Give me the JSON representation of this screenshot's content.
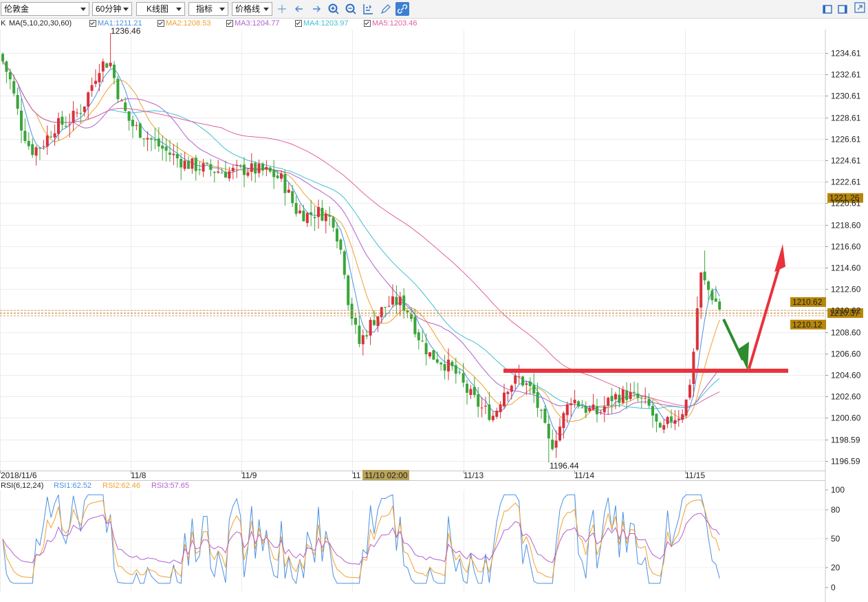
{
  "toolbar": {
    "symbol": "伦敦金",
    "period": "60分钟",
    "chart_kind": "K线图",
    "indicator": "指标",
    "price_line": "价格线",
    "icons": [
      "crosshair-icon",
      "arrow-left-icon",
      "arrow-right-icon",
      "zoom-in-icon",
      "zoom-out-icon",
      "axis-scale-icon",
      "pen-icon",
      "link-icon"
    ],
    "window_icons": [
      "layout-left-icon",
      "layout-right-icon",
      "expand-icon"
    ]
  },
  "legend": {
    "k": "K",
    "ma_title": "MA(5,10,20,30,60)",
    "ma": [
      {
        "label": "MA1:1211.21",
        "color": "#4a90e2"
      },
      {
        "label": "MA2:1208.53",
        "color": "#f0a030"
      },
      {
        "label": "MA3:1204.77",
        "color": "#b060d0"
      },
      {
        "label": "MA4:1203.97",
        "color": "#40c0d0"
      },
      {
        "label": "MA5:1203.46",
        "color": "#e060a0"
      }
    ]
  },
  "rsi_legend": {
    "title": "RSI(6,12,24)",
    "items": [
      {
        "label": "RSI1:62.52",
        "color": "#4a90e2"
      },
      {
        "label": "RSI2:62.46",
        "color": "#f0a030"
      },
      {
        "label": "RSI3:57.65",
        "color": "#b060d0"
      }
    ]
  },
  "chart_data": {
    "type": "candlestick",
    "y_ticks": [
      "1234.61",
      "1232.61",
      "1230.61",
      "1228.61",
      "1226.61",
      "1224.61",
      "1222.61",
      "1220.61",
      "1218.60",
      "1216.60",
      "1214.60",
      "1212.60",
      "1210.62",
      "1208.60",
      "1206.60",
      "1204.60",
      "1202.60",
      "1200.60",
      "1198.59",
      "1196.59"
    ],
    "ylim": [
      1195.6,
      1238.0
    ],
    "x_labels": [
      "2018/11/6",
      "11/8",
      "11/9",
      "11/10 02:00",
      "11/13",
      "11/14",
      "11/15"
    ],
    "max_label": "1236.46",
    "min_label": "1196.44",
    "price_tags": [
      {
        "label": "1221.26",
        "color": "#b8860b"
      },
      {
        "label": "1210.62",
        "color": "#b8860b"
      },
      {
        "label": "1210.37",
        "color": "#b8860b"
      },
      {
        "label": "1210.12",
        "color": "#b8860b"
      }
    ],
    "last_price": 1210.37,
    "support_level": 1205.0,
    "rsi_ticks": [
      "100",
      "80",
      "50",
      "20",
      "0"
    ],
    "rsi_levels": [
      100,
      80,
      50,
      20,
      0
    ],
    "up_color": "#d9313c",
    "down_color": "#3aa53a"
  }
}
